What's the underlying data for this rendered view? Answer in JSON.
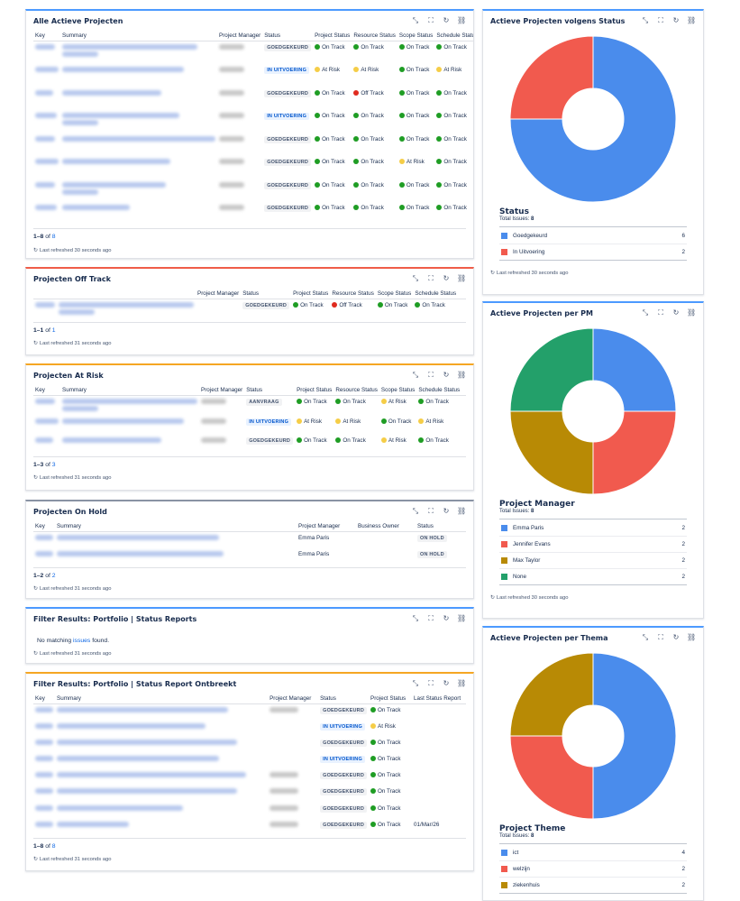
{
  "colors": {
    "blue": "#4a8cec",
    "red": "#f15a4e",
    "green": "#23a06a",
    "gold": "#b88a05"
  },
  "icons": [
    "minimize-icon",
    "fullscreen-icon",
    "refresh-icon",
    "link-icon"
  ],
  "active": {
    "title": "Alle Actieve Projecten",
    "headers": [
      "Key",
      "Summary",
      "Project Manager",
      "Status",
      "Project Status",
      "Resource Status",
      "Scope Status",
      "Schedule Status"
    ],
    "rows": [
      {
        "status": "GOEDGEKEURD",
        "status_style": "gray",
        "ps": "On Track",
        "ps_c": "green",
        "rs": "On Track",
        "rs_c": "green",
        "ss": "On Track",
        "ss_c": "green",
        "sch": "On Track",
        "sch_c": "green"
      },
      {
        "status": "IN UITVOERING",
        "status_style": "blue",
        "ps": "At Risk",
        "ps_c": "yellow",
        "rs": "At Risk",
        "rs_c": "yellow",
        "ss": "On Track",
        "ss_c": "green",
        "sch": "At Risk",
        "sch_c": "yellow"
      },
      {
        "status": "GOEDGEKEURD",
        "status_style": "gray",
        "ps": "On Track",
        "ps_c": "green",
        "rs": "Off Track",
        "rs_c": "red",
        "ss": "On Track",
        "ss_c": "green",
        "sch": "On Track",
        "sch_c": "green"
      },
      {
        "status": "IN UITVOERING",
        "status_style": "blue",
        "ps": "On Track",
        "ps_c": "green",
        "rs": "On Track",
        "rs_c": "green",
        "ss": "On Track",
        "ss_c": "green",
        "sch": "On Track",
        "sch_c": "green"
      },
      {
        "status": "GOEDGEKEURD",
        "status_style": "gray",
        "ps": "On Track",
        "ps_c": "green",
        "rs": "On Track",
        "rs_c": "green",
        "ss": "On Track",
        "ss_c": "green",
        "sch": "On Track",
        "sch_c": "green"
      },
      {
        "status": "GOEDGEKEURD",
        "status_style": "gray",
        "ps": "On Track",
        "ps_c": "green",
        "rs": "On Track",
        "rs_c": "green",
        "ss": "At Risk",
        "ss_c": "yellow",
        "sch": "On Track",
        "sch_c": "green"
      },
      {
        "status": "GOEDGEKEURD",
        "status_style": "gray",
        "ps": "On Track",
        "ps_c": "green",
        "rs": "On Track",
        "rs_c": "green",
        "ss": "On Track",
        "ss_c": "green",
        "sch": "On Track",
        "sch_c": "green"
      },
      {
        "status": "GOEDGEKEURD",
        "status_style": "gray",
        "ps": "On Track",
        "ps_c": "green",
        "rs": "On Track",
        "rs_c": "green",
        "ss": "On Track",
        "ss_c": "green",
        "sch": "On Track",
        "sch_c": "green"
      }
    ],
    "pager_range": "1–8",
    "pager_of": "of",
    "pager_total": "8",
    "refreshed": "Last refreshed 30 seconds ago"
  },
  "offtrack": {
    "title": "Projecten Off Track",
    "headers": [
      "",
      "",
      "Project Manager",
      "Status",
      "Project Status",
      "Resource Status",
      "Scope Status",
      "Schedule Status"
    ],
    "rows": [
      {
        "status": "GOEDGEKEURD",
        "status_style": "gray",
        "ps": "On Track",
        "ps_c": "green",
        "rs": "Off Track",
        "rs_c": "red",
        "ss": "On Track",
        "ss_c": "green",
        "sch": "On Track",
        "sch_c": "green"
      }
    ],
    "pager_range": "1–1",
    "pager_of": "of",
    "pager_total": "1",
    "refreshed": "Last refreshed 31 seconds ago"
  },
  "atrisk": {
    "title": "Projecten At Risk",
    "headers": [
      "Key",
      "Summary",
      "Project Manager",
      "Status",
      "Project Status",
      "Resource Status",
      "Scope Status",
      "Schedule Status"
    ],
    "rows": [
      {
        "status": "AANVRAAG",
        "status_style": "gray",
        "ps": "On Track",
        "ps_c": "green",
        "rs": "On Track",
        "rs_c": "green",
        "ss": "At Risk",
        "ss_c": "yellow",
        "sch": "On Track",
        "sch_c": "green"
      },
      {
        "status": "IN UITVOERING",
        "status_style": "blue",
        "ps": "At Risk",
        "ps_c": "yellow",
        "rs": "At Risk",
        "rs_c": "yellow",
        "ss": "On Track",
        "ss_c": "green",
        "sch": "At Risk",
        "sch_c": "yellow"
      },
      {
        "status": "GOEDGEKEURD",
        "status_style": "gray",
        "ps": "On Track",
        "ps_c": "green",
        "rs": "On Track",
        "rs_c": "green",
        "ss": "At Risk",
        "ss_c": "yellow",
        "sch": "On Track",
        "sch_c": "green"
      }
    ],
    "pager_range": "1–3",
    "pager_of": "of",
    "pager_total": "3",
    "refreshed": "Last refreshed 31 seconds ago"
  },
  "onhold": {
    "title": "Projecten On Hold",
    "headers": [
      "Key",
      "Summary",
      "Project Manager",
      "Business Owner",
      "Status"
    ],
    "rows": [
      {
        "pm": "Emma Paris",
        "status": "ON HOLD"
      },
      {
        "pm": "Emma Paris",
        "status": "ON HOLD"
      }
    ],
    "pager_range": "1–2",
    "pager_of": "of",
    "pager_total": "2",
    "refreshed": "Last refreshed 31 seconds ago"
  },
  "filter1": {
    "title": "Filter Results: Portfolio | Status Reports",
    "no_match_pre": "No matching",
    "no_match_link": "issues",
    "no_match_post": "found.",
    "refreshed": "Last refreshed 31 seconds ago"
  },
  "filter2": {
    "title": "Filter Results: Portfolio | Status Report Ontbreekt",
    "headers": [
      "Key",
      "Summary",
      "Project Manager",
      "Status",
      "Project Status",
      "Last Status Report"
    ],
    "rows": [
      {
        "status": "GOEDGEKEURD",
        "status_style": "gray",
        "ps": "On Track",
        "ps_c": "green",
        "last": ""
      },
      {
        "status": "IN UITVOERING",
        "status_style": "blue",
        "ps": "At Risk",
        "ps_c": "yellow",
        "last": ""
      },
      {
        "status": "GOEDGEKEURD",
        "status_style": "gray",
        "ps": "On Track",
        "ps_c": "green",
        "last": ""
      },
      {
        "status": "IN UITVOERING",
        "status_style": "blue",
        "ps": "On Track",
        "ps_c": "green",
        "last": ""
      },
      {
        "status": "GOEDGEKEURD",
        "status_style": "gray",
        "ps": "On Track",
        "ps_c": "green",
        "last": ""
      },
      {
        "status": "GOEDGEKEURD",
        "status_style": "gray",
        "ps": "On Track",
        "ps_c": "green",
        "last": ""
      },
      {
        "status": "GOEDGEKEURD",
        "status_style": "gray",
        "ps": "On Track",
        "ps_c": "green",
        "last": ""
      },
      {
        "status": "GOEDGEKEURD",
        "status_style": "gray",
        "ps": "On Track",
        "ps_c": "green",
        "last": "01/Mar/26"
      }
    ],
    "pager_range": "1–8",
    "pager_of": "of",
    "pager_total": "8",
    "refreshed": "Last refreshed 31 seconds ago"
  },
  "pie_status": {
    "title": "Actieve Projecten volgens Status",
    "legend_title": "Status",
    "total_label": "Total Issues:",
    "total": "8",
    "items": [
      {
        "name": "Goedgekeurd",
        "value": 6,
        "color": "#4a8cec"
      },
      {
        "name": "In Uitvoering",
        "value": 2,
        "color": "#f15a4e"
      }
    ],
    "refreshed": "Last refreshed 30 seconds ago"
  },
  "pie_pm": {
    "title": "Actieve Projecten per PM",
    "legend_title": "Project Manager",
    "total_label": "Total Issues:",
    "total": "8",
    "items": [
      {
        "name": "Emma Paris",
        "value": 2,
        "color": "#4a8cec"
      },
      {
        "name": "Jennifer Evans",
        "value": 2,
        "color": "#f15a4e"
      },
      {
        "name": "Max Taylor",
        "value": 2,
        "color": "#b88a05"
      },
      {
        "name": "None",
        "value": 2,
        "color": "#23a06a"
      }
    ],
    "refreshed": "Last refreshed 30 seconds ago"
  },
  "pie_theme": {
    "title": "Actieve Projecten per Thema",
    "legend_title": "Project Theme",
    "total_label": "Total Issues:",
    "total": "8",
    "items": [
      {
        "name": "ict",
        "value": 4,
        "color": "#4a8cec"
      },
      {
        "name": "welzijn",
        "value": 2,
        "color": "#f15a4e"
      },
      {
        "name": "ziekenhuis",
        "value": 2,
        "color": "#b88a05"
      }
    ]
  },
  "chart_data": [
    {
      "type": "pie",
      "title": "Actieve Projecten volgens Status",
      "categories": [
        "Goedgekeurd",
        "In Uitvoering"
      ],
      "values": [
        6,
        2
      ]
    },
    {
      "type": "pie",
      "title": "Actieve Projecten per PM",
      "categories": [
        "Emma Paris",
        "Jennifer Evans",
        "Max Taylor",
        "None"
      ],
      "values": [
        2,
        2,
        2,
        2
      ]
    },
    {
      "type": "pie",
      "title": "Actieve Projecten per Thema",
      "categories": [
        "ict",
        "welzijn",
        "ziekenhuis"
      ],
      "values": [
        4,
        2,
        2
      ]
    }
  ]
}
